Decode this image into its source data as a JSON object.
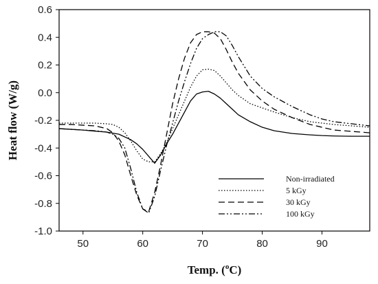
{
  "chart_data": {
    "type": "line",
    "xlabel_prefix": "Temp. (",
    "xlabel_sup": "o",
    "xlabel_suffix": "C)",
    "ylabel": "Heat flow (W/g)",
    "xlim": [
      46,
      98
    ],
    "ylim": [
      -1.0,
      0.6
    ],
    "xticks": [
      50,
      60,
      70,
      80,
      90
    ],
    "yticks": [
      -1.0,
      -0.8,
      -0.6,
      -0.4,
      -0.2,
      0.0,
      0.2,
      0.4,
      0.6
    ],
    "ytick_labels": [
      "-1.0",
      "-0.8",
      "-0.6",
      "-0.4",
      "-0.2",
      "0.0",
      "0.2",
      "0.4",
      "0.6"
    ],
    "grid": false,
    "legend_position": "lower-right",
    "series": [
      {
        "name": "Non-irradiated",
        "dash": "solid",
        "color": "#000000",
        "x": [
          46,
          48,
          50,
          52,
          54,
          56,
          58,
          59,
          60,
          61,
          62,
          63,
          64,
          65,
          66,
          67,
          68,
          69,
          70,
          71,
          72,
          73,
          74,
          75,
          76,
          78,
          80,
          82,
          85,
          88,
          90,
          92,
          95,
          98
        ],
        "y": [
          -0.26,
          -0.265,
          -0.27,
          -0.278,
          -0.285,
          -0.3,
          -0.34,
          -0.37,
          -0.41,
          -0.46,
          -0.51,
          -0.45,
          -0.37,
          -0.3,
          -0.22,
          -0.14,
          -0.06,
          -0.01,
          0.005,
          0.01,
          -0.01,
          -0.04,
          -0.08,
          -0.12,
          -0.16,
          -0.21,
          -0.25,
          -0.275,
          -0.295,
          -0.305,
          -0.31,
          -0.313,
          -0.315,
          -0.315
        ]
      },
      {
        "name": "5 kGy",
        "dash": "dotted",
        "color": "#000000",
        "x": [
          46,
          48,
          50,
          52,
          54,
          55,
          56,
          57,
          58,
          59,
          60,
          61,
          62,
          63,
          64,
          65,
          66,
          67,
          68,
          69,
          70,
          71,
          72,
          73,
          74,
          75,
          76,
          78,
          80,
          82,
          85,
          88,
          90,
          92,
          95,
          98
        ],
        "y": [
          -0.22,
          -0.22,
          -0.22,
          -0.22,
          -0.225,
          -0.23,
          -0.25,
          -0.29,
          -0.35,
          -0.42,
          -0.48,
          -0.5,
          -0.5,
          -0.44,
          -0.36,
          -0.26,
          -0.16,
          -0.06,
          0.04,
          0.12,
          0.165,
          0.17,
          0.16,
          0.12,
          0.07,
          0.02,
          -0.02,
          -0.08,
          -0.11,
          -0.14,
          -0.18,
          -0.21,
          -0.22,
          -0.23,
          -0.24,
          -0.25
        ]
      },
      {
        "name": "30 kGy",
        "dash": "dashed",
        "color": "#000000",
        "x": [
          46,
          48,
          50,
          52,
          54,
          55,
          56,
          57,
          58,
          59,
          60,
          61,
          62,
          63,
          64,
          65,
          66,
          67,
          68,
          69,
          70,
          71,
          72,
          73,
          74,
          75,
          76,
          78,
          80,
          82,
          85,
          88,
          90,
          92,
          95,
          98
        ],
        "y": [
          -0.23,
          -0.23,
          -0.235,
          -0.24,
          -0.26,
          -0.29,
          -0.35,
          -0.45,
          -0.6,
          -0.74,
          -0.84,
          -0.86,
          -0.72,
          -0.52,
          -0.3,
          -0.08,
          0.1,
          0.25,
          0.36,
          0.42,
          0.44,
          0.44,
          0.43,
          0.39,
          0.31,
          0.22,
          0.14,
          0.02,
          -0.06,
          -0.12,
          -0.18,
          -0.23,
          -0.25,
          -0.27,
          -0.28,
          -0.29
        ]
      },
      {
        "name": "100 kGy",
        "dash": "dashdotdot",
        "color": "#000000",
        "x": [
          46,
          48,
          50,
          52,
          54,
          55,
          56,
          57,
          58,
          59,
          60,
          61,
          62,
          63,
          64,
          65,
          66,
          67,
          68,
          69,
          70,
          71,
          72,
          73,
          74,
          75,
          76,
          78,
          80,
          82,
          85,
          88,
          90,
          92,
          95,
          98
        ],
        "y": [
          -0.26,
          -0.265,
          -0.27,
          -0.275,
          -0.285,
          -0.3,
          -0.33,
          -0.4,
          -0.55,
          -0.72,
          -0.84,
          -0.87,
          -0.75,
          -0.56,
          -0.38,
          -0.22,
          -0.06,
          0.08,
          0.21,
          0.32,
          0.39,
          0.42,
          0.44,
          0.44,
          0.41,
          0.34,
          0.26,
          0.12,
          0.03,
          -0.03,
          -0.1,
          -0.16,
          -0.19,
          -0.21,
          -0.225,
          -0.24
        ]
      }
    ]
  }
}
